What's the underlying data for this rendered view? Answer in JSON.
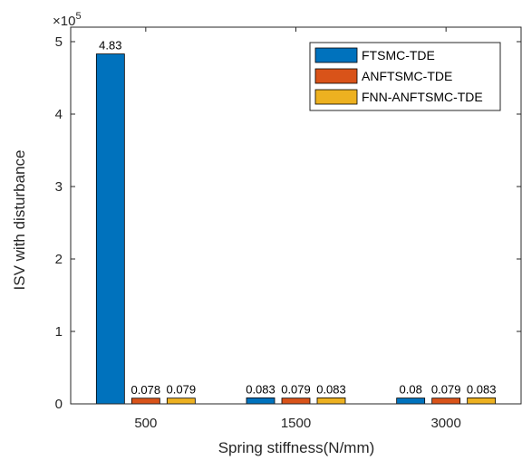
{
  "chart_data": {
    "type": "bar",
    "categories": [
      "500",
      "1500",
      "3000"
    ],
    "series": [
      {
        "name": "FTSMC-TDE",
        "values": [
          4.83,
          0.083,
          0.08
        ],
        "labels": [
          "4.83",
          "0.083",
          "0.08"
        ],
        "color": "#0072BD"
      },
      {
        "name": "ANFTSMC-TDE",
        "values": [
          0.078,
          0.079,
          0.079
        ],
        "labels": [
          "0.078",
          "0.079",
          "0.079"
        ],
        "color": "#D95319"
      },
      {
        "name": "FNN-ANFTSMC-TDE",
        "values": [
          0.079,
          0.083,
          0.083
        ],
        "labels": [
          "0.079",
          "0.083",
          "0.083"
        ],
        "color": "#EDB120"
      }
    ],
    "xlabel": "Spring stiffness(N/mm)",
    "ylabel": "ISV with disturbance",
    "y_exponent_base": "×10",
    "y_exponent_power": "5",
    "ylim": [
      0,
      5.2
    ],
    "yticks": [
      "0",
      "1",
      "2",
      "3",
      "4",
      "5"
    ],
    "grid": false,
    "legend_position": "top-right"
  }
}
